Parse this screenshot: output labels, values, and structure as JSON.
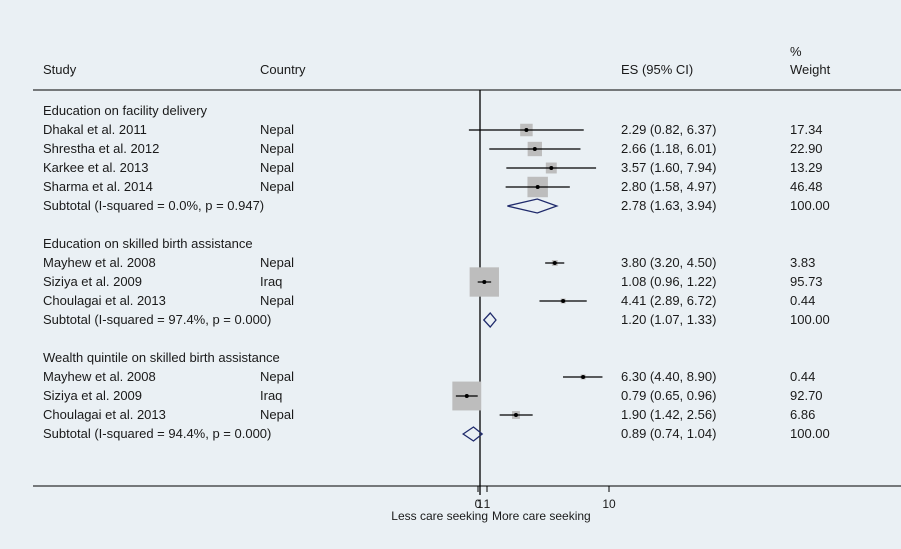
{
  "chart_data": {
    "type": "forest",
    "x_scale": "log",
    "reference_line": 1,
    "columns": {
      "study": "Study",
      "country": "Country",
      "es": "ES (95% CI)",
      "weight_line1": "%",
      "weight_line2": "Weight"
    },
    "x_ticks": [
      {
        "value": 0.9,
        "label": "0"
      },
      {
        "value": 1,
        "label": "1"
      },
      {
        "value": 1.13,
        "label": "1"
      },
      {
        "value": 10,
        "label": "10"
      }
    ],
    "x_left_label": "Less care seeking",
    "x_right_label": "More care seeking",
    "groups": [
      {
        "title": "Education on facility delivery",
        "studies": [
          {
            "study": "Dhakal et al. 2011",
            "country": "Nepal",
            "es": 2.29,
            "lo": 0.82,
            "hi": 6.37,
            "es_text": "2.29 (0.82, 6.37)",
            "weight": 17.34,
            "weight_text": "17.34"
          },
          {
            "study": "Shrestha et al. 2012",
            "country": "Nepal",
            "es": 2.66,
            "lo": 1.18,
            "hi": 6.01,
            "es_text": "2.66 (1.18, 6.01)",
            "weight": 22.9,
            "weight_text": "22.90"
          },
          {
            "study": "Karkee et al. 2013",
            "country": "Nepal",
            "es": 3.57,
            "lo": 1.6,
            "hi": 7.94,
            "es_text": "3.57 (1.60, 7.94)",
            "weight": 13.29,
            "weight_text": "13.29"
          },
          {
            "study": "Sharma et al. 2014",
            "country": "Nepal",
            "es": 2.8,
            "lo": 1.58,
            "hi": 4.97,
            "es_text": "2.80 (1.58, 4.97)",
            "weight": 46.48,
            "weight_text": "46.48"
          }
        ],
        "subtotal": {
          "label": "Subtotal  (I-squared = 0.0%, p = 0.947)",
          "es": 2.78,
          "lo": 1.63,
          "hi": 3.94,
          "es_text": "2.78 (1.63, 3.94)",
          "weight_text": "100.00"
        }
      },
      {
        "title": "Education on skilled birth assistance",
        "studies": [
          {
            "study": "Mayhew et al. 2008",
            "country": "Nepal",
            "es": 3.8,
            "lo": 3.2,
            "hi": 4.5,
            "es_text": "3.80 (3.20, 4.50)",
            "weight": 3.83,
            "weight_text": "3.83"
          },
          {
            "study": "Siziya et al. 2009",
            "country": "Iraq",
            "es": 1.08,
            "lo": 0.96,
            "hi": 1.22,
            "es_text": "1.08 (0.96, 1.22)",
            "weight": 95.73,
            "weight_text": "95.73"
          },
          {
            "study": "Choulagai et al. 2013",
            "country": "Nepal",
            "es": 4.41,
            "lo": 2.89,
            "hi": 6.72,
            "es_text": "4.41 (2.89, 6.72)",
            "weight": 0.44,
            "weight_text": "0.44"
          }
        ],
        "subtotal": {
          "label": "Subtotal  (I-squared = 97.4%, p = 0.000)",
          "es": 1.2,
          "lo": 1.07,
          "hi": 1.33,
          "es_text": "1.20 (1.07, 1.33)",
          "weight_text": "100.00"
        }
      },
      {
        "title": "Wealth quintile on skilled birth assistance",
        "studies": [
          {
            "study": "Mayhew et al. 2008",
            "country": "Nepal",
            "es": 6.3,
            "lo": 4.4,
            "hi": 8.9,
            "es_text": "6.30 (4.40, 8.90)",
            "weight": 0.44,
            "weight_text": "0.44"
          },
          {
            "study": "Siziya et al. 2009",
            "country": "Iraq",
            "es": 0.79,
            "lo": 0.65,
            "hi": 0.96,
            "es_text": "0.79 (0.65, 0.96)",
            "weight": 92.7,
            "weight_text": "92.70"
          },
          {
            "study": "Choulagai et al. 2013",
            "country": "Nepal",
            "es": 1.9,
            "lo": 1.42,
            "hi": 2.56,
            "es_text": "1.90 (1.42, 2.56)",
            "weight": 6.86,
            "weight_text": "6.86"
          }
        ],
        "subtotal": {
          "label": "Subtotal  (I-squared = 94.4%, p = 0.000)",
          "es": 0.89,
          "lo": 0.74,
          "hi": 1.04,
          "es_text": "0.89 (0.74, 1.04)",
          "weight_text": "100.00"
        }
      }
    ],
    "colors": {
      "background": "#eaf0f4",
      "box": "#bdbdbd",
      "ci_line": "#000000",
      "diamond": "#1f2a6b",
      "text": "#1a1a1a"
    }
  }
}
